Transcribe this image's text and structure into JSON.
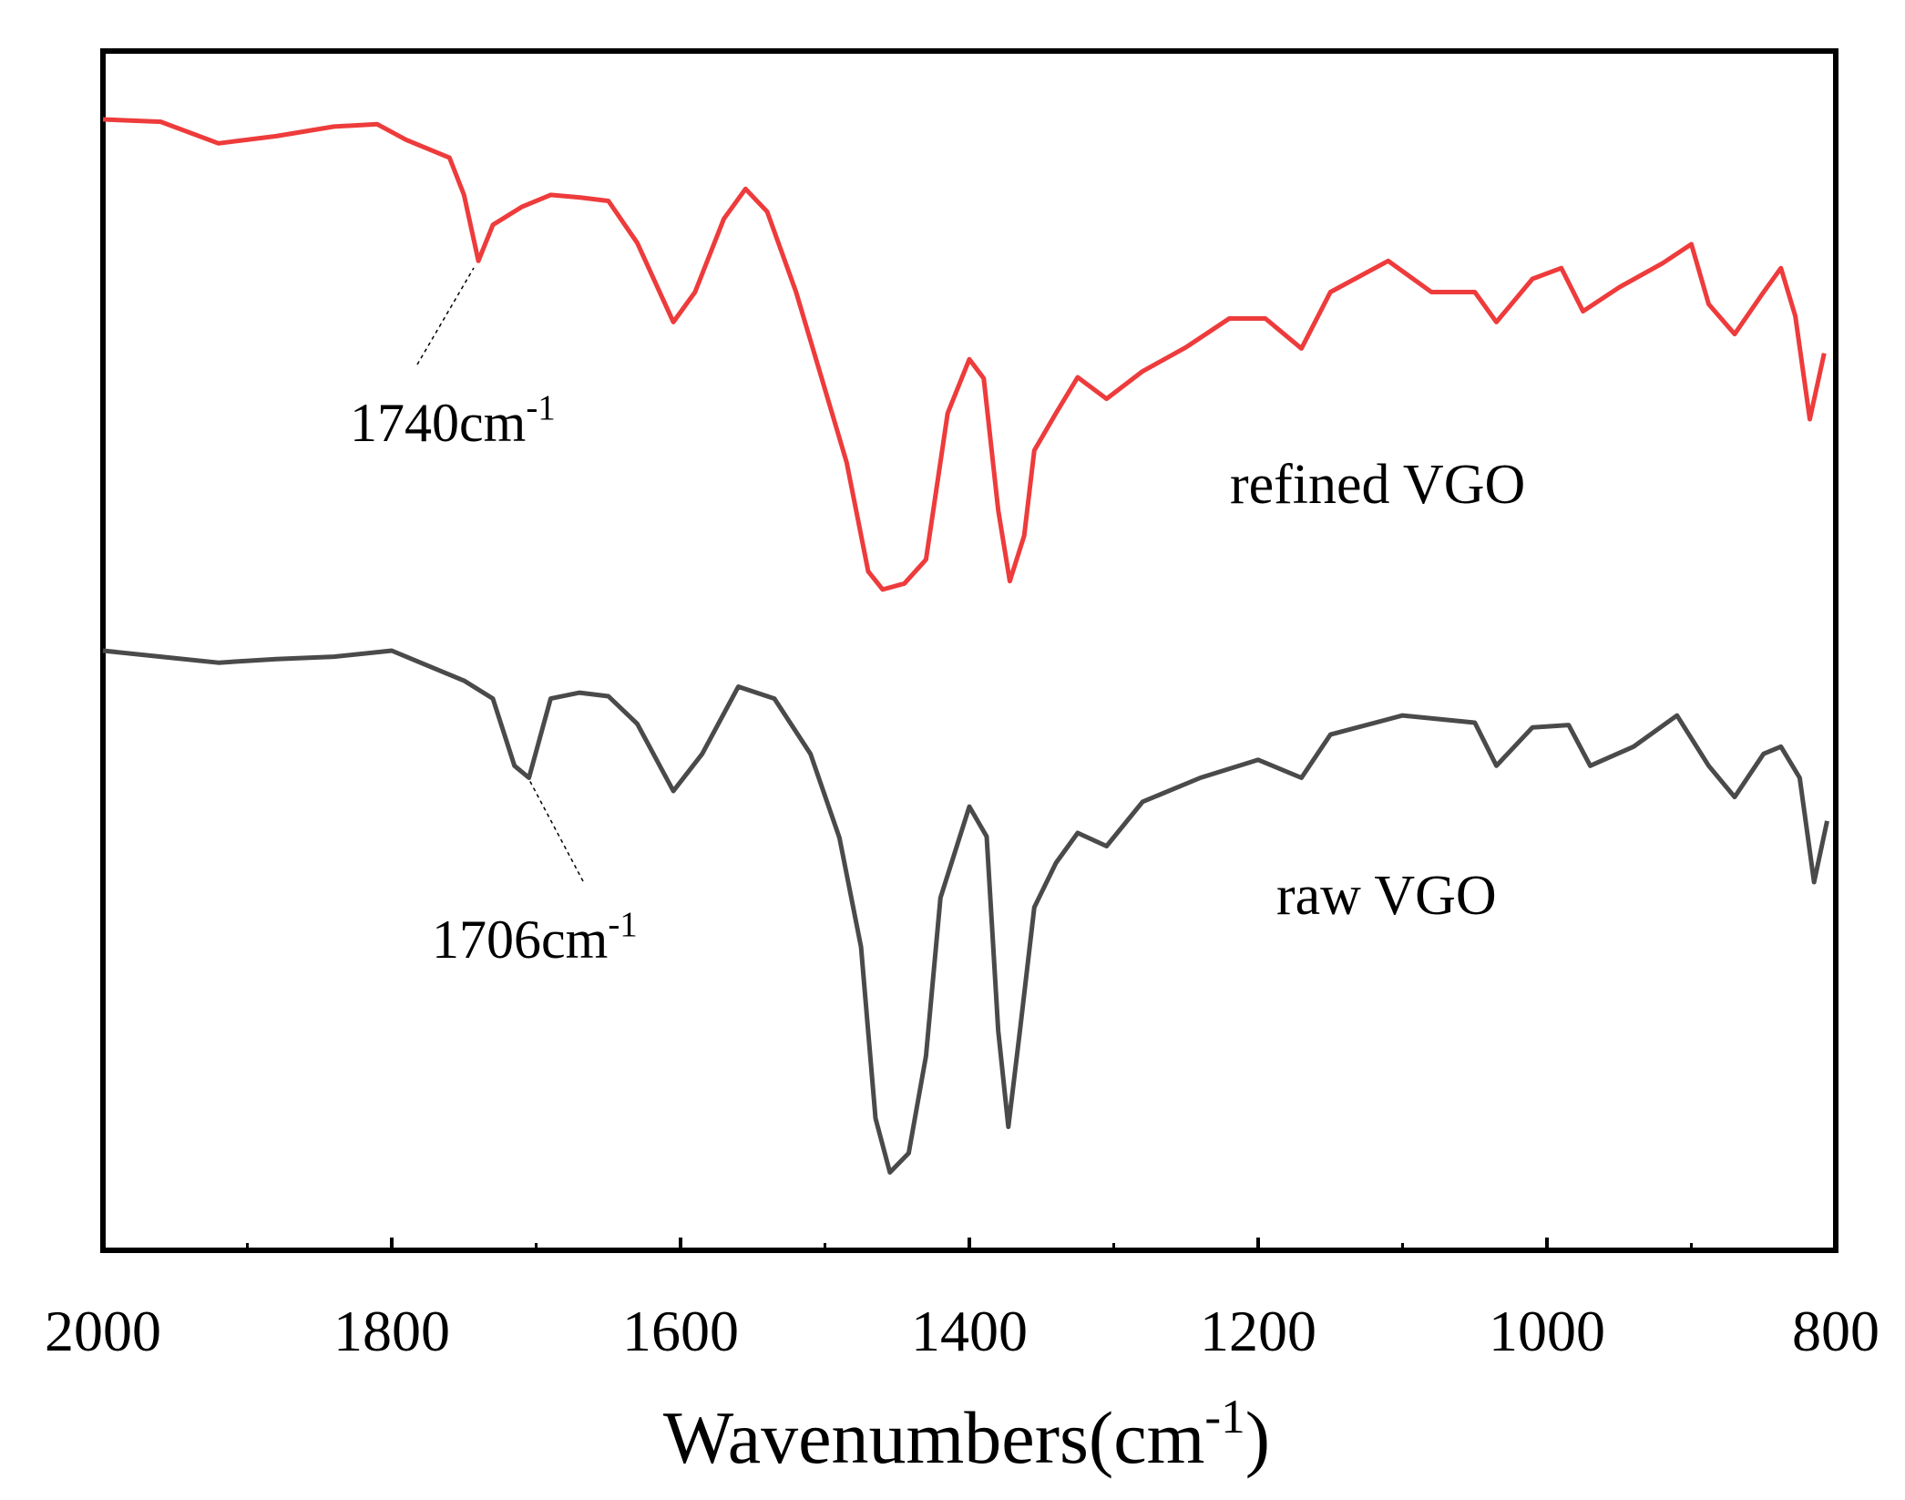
{
  "chart_data": {
    "type": "line",
    "xlabel": {
      "text": "Wavenumbers(cm",
      "sup": "-1",
      "suffix": ")"
    },
    "xlim": [
      2000,
      800
    ],
    "xticks": [
      2000,
      1800,
      1600,
      1400,
      1200,
      1000,
      800
    ],
    "xminor": [
      1900,
      1700,
      1500,
      1300,
      1100,
      900
    ],
    "ylim": [
      0,
      100
    ],
    "annotations": [
      {
        "text": "1740cm",
        "sup": "-1"
      },
      {
        "text": "1706cm",
        "sup": "-1"
      }
    ],
    "series": [
      {
        "name": "refined VGO",
        "color": "#ee3b3b",
        "x": [
          2000,
          1960,
          1920,
          1880,
          1840,
          1810,
          1790,
          1760,
          1750,
          1740,
          1730,
          1710,
          1690,
          1670,
          1650,
          1630,
          1605,
          1590,
          1570,
          1555,
          1540,
          1520,
          1500,
          1485,
          1470,
          1460,
          1445,
          1430,
          1415,
          1400,
          1390,
          1380,
          1372,
          1362,
          1355,
          1340,
          1325,
          1305,
          1280,
          1250,
          1220,
          1195,
          1170,
          1150,
          1110,
          1080,
          1050,
          1035,
          1010,
          990,
          975,
          950,
          920,
          900,
          888,
          870,
          850,
          838,
          828,
          818,
          808
        ],
        "values": [
          94.3,
          94.1,
          92.3,
          92.9,
          93.7,
          93.9,
          92.6,
          91.1,
          88.0,
          82.5,
          85.5,
          87.0,
          88.0,
          87.8,
          87.5,
          84.0,
          77.4,
          79.9,
          86.0,
          88.5,
          86.6,
          79.9,
          71.8,
          65.7,
          56.6,
          55.1,
          55.6,
          57.6,
          69.8,
          74.3,
          72.7,
          61.7,
          55.8,
          59.6,
          66.7,
          69.8,
          72.8,
          71.0,
          73.3,
          75.3,
          77.7,
          77.7,
          75.2,
          79.9,
          82.5,
          79.9,
          79.9,
          77.4,
          81.0,
          81.9,
          78.3,
          80.3,
          82.3,
          83.9,
          78.9,
          76.4,
          79.9,
          81.9,
          77.9,
          69.3,
          74.8
        ]
      },
      {
        "name": "raw VGO",
        "color": "#4a4a4a",
        "x": [
          2000,
          1960,
          1920,
          1880,
          1840,
          1800,
          1780,
          1750,
          1730,
          1715,
          1705,
          1690,
          1670,
          1650,
          1630,
          1605,
          1585,
          1560,
          1535,
          1510,
          1490,
          1475,
          1465,
          1455,
          1442,
          1430,
          1420,
          1400,
          1388,
          1380,
          1373,
          1365,
          1355,
          1340,
          1325,
          1305,
          1280,
          1240,
          1200,
          1170,
          1150,
          1100,
          1050,
          1035,
          1010,
          985,
          970,
          940,
          910,
          888,
          870,
          850,
          838,
          825,
          815,
          806
        ],
        "values": [
          50.0,
          49.5,
          49.0,
          49.3,
          49.5,
          50.0,
          49.0,
          47.5,
          46.0,
          40.4,
          39.4,
          46.0,
          46.5,
          46.2,
          43.9,
          38.3,
          41.4,
          47.0,
          46.0,
          41.4,
          34.4,
          25.3,
          11.0,
          6.5,
          8.1,
          16.2,
          29.4,
          37.0,
          34.5,
          18.3,
          10.3,
          18.3,
          28.6,
          32.3,
          34.8,
          33.7,
          37.4,
          39.4,
          40.9,
          39.4,
          43.0,
          44.6,
          44.0,
          40.4,
          43.6,
          43.8,
          40.4,
          42.0,
          44.6,
          40.4,
          37.8,
          41.4,
          42.0,
          39.4,
          30.7,
          35.8
        ]
      }
    ]
  }
}
